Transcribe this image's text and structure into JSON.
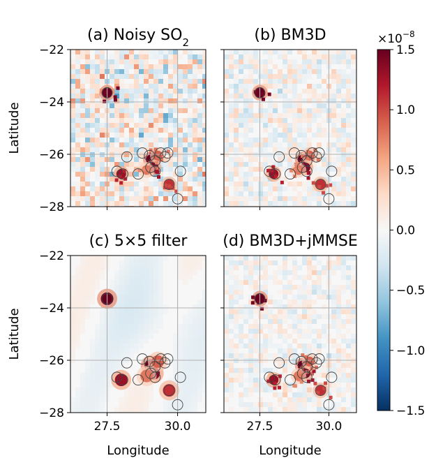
{
  "chart_data": {
    "type": "heatmap",
    "panels": [
      {
        "title": "(a) Noisy SO",
        "title_sub": "2",
        "noise": 1.0,
        "clutter": 1.0
      },
      {
        "title": "(b) BM3D",
        "title_sub": "",
        "noise": 0.55,
        "clutter": 0.35
      },
      {
        "title": "(c) 5×5 filter",
        "title_sub": "",
        "noise": 0.12,
        "clutter": 0.12
      },
      {
        "title": "(d) BM3D+jMMSE",
        "title_sub": "",
        "noise": 0.45,
        "clutter": 0.25
      }
    ],
    "xlabel": "Longitude",
    "ylabel": "Latitude",
    "xlim": [
      26.2,
      31.0
    ],
    "ylim": [
      -28,
      -22
    ],
    "xticks": [
      27.5,
      30.0
    ],
    "xtick_labels": [
      "27.5",
      "30.0"
    ],
    "yticks": [
      -22,
      -24,
      -26,
      -28
    ],
    "ytick_labels": [
      "−22",
      "−24",
      "−26",
      "−28"
    ],
    "colorbar": {
      "vmin": -1.5e-08,
      "vmax": 1.5e-08,
      "ticks": [
        1.5,
        1.0,
        0.5,
        0.0,
        -0.5,
        -1.0,
        -1.5
      ],
      "tick_labels": [
        "1.5",
        "1.0",
        "0.5",
        "0.0",
        "−0.5",
        "−1.0",
        "−1.5"
      ],
      "scale_label": "×10",
      "scale_exp": "−8",
      "cmap": "RdBu_r"
    },
    "sources": [
      {
        "lon": 27.5,
        "lat": -23.65,
        "value": 1.6
      },
      {
        "lon": 29.05,
        "lat": -26.2,
        "value": 1.6
      },
      {
        "lon": 29.15,
        "lat": -26.5,
        "value": 1.4
      },
      {
        "lon": 28.0,
        "lat": -26.75,
        "value": 1.3
      },
      {
        "lon": 29.7,
        "lat": -27.15,
        "value": 1.1
      },
      {
        "lon": 29.3,
        "lat": -26.05,
        "value": 0.9
      },
      {
        "lon": 28.9,
        "lat": -26.6,
        "value": 0.8
      }
    ],
    "circles": [
      {
        "lon": 27.5,
        "lat": -23.65
      },
      {
        "lon": 28.75,
        "lat": -25.95
      },
      {
        "lon": 29.0,
        "lat": -26.05
      },
      {
        "lon": 29.2,
        "lat": -26.25
      },
      {
        "lon": 29.4,
        "lat": -25.95
      },
      {
        "lon": 29.65,
        "lat": -25.95
      },
      {
        "lon": 29.55,
        "lat": -26.1
      },
      {
        "lon": 28.2,
        "lat": -26.1
      },
      {
        "lon": 27.85,
        "lat": -26.65
      },
      {
        "lon": 28.05,
        "lat": -26.75
      },
      {
        "lon": 28.6,
        "lat": -26.75
      },
      {
        "lon": 29.05,
        "lat": -26.5
      },
      {
        "lon": 29.2,
        "lat": -26.65
      },
      {
        "lon": 29.7,
        "lat": -27.15
      },
      {
        "lon": 30.1,
        "lat": -26.65
      },
      {
        "lon": 30.0,
        "lat": -27.7
      }
    ]
  }
}
